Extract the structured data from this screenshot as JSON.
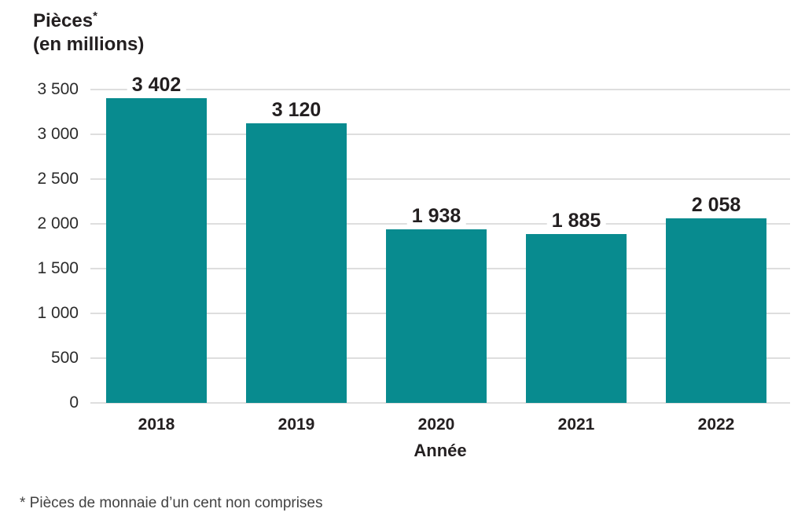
{
  "title": {
    "line1": "Pièces",
    "asterisk": "*",
    "line2": "(en millions)"
  },
  "chart_data": {
    "type": "bar",
    "title": "Pièces* (en millions)",
    "categories": [
      "2018",
      "2019",
      "2020",
      "2021",
      "2022"
    ],
    "values": [
      3402,
      3120,
      1938,
      1885,
      2058
    ],
    "value_labels": [
      "3 402",
      "3 120",
      "1 938",
      "1 885",
      "2 058"
    ],
    "xlabel": "Année",
    "ylabel": "Pièces (en millions)",
    "ylim": [
      0,
      3500
    ],
    "ytick_step": 500,
    "ytick_labels": [
      "0",
      "500",
      "1 000",
      "1 500",
      "2 000",
      "2 500",
      "3 000",
      "3 500"
    ],
    "grid": true,
    "legend": "none",
    "bar_color": "#088b8f"
  },
  "footnote": "* Pièces de monnaie d’un cent non comprises",
  "colors": {
    "bar": "#088b8f",
    "text": "#231f20",
    "grid": "#dedede",
    "background": "#ffffff"
  }
}
